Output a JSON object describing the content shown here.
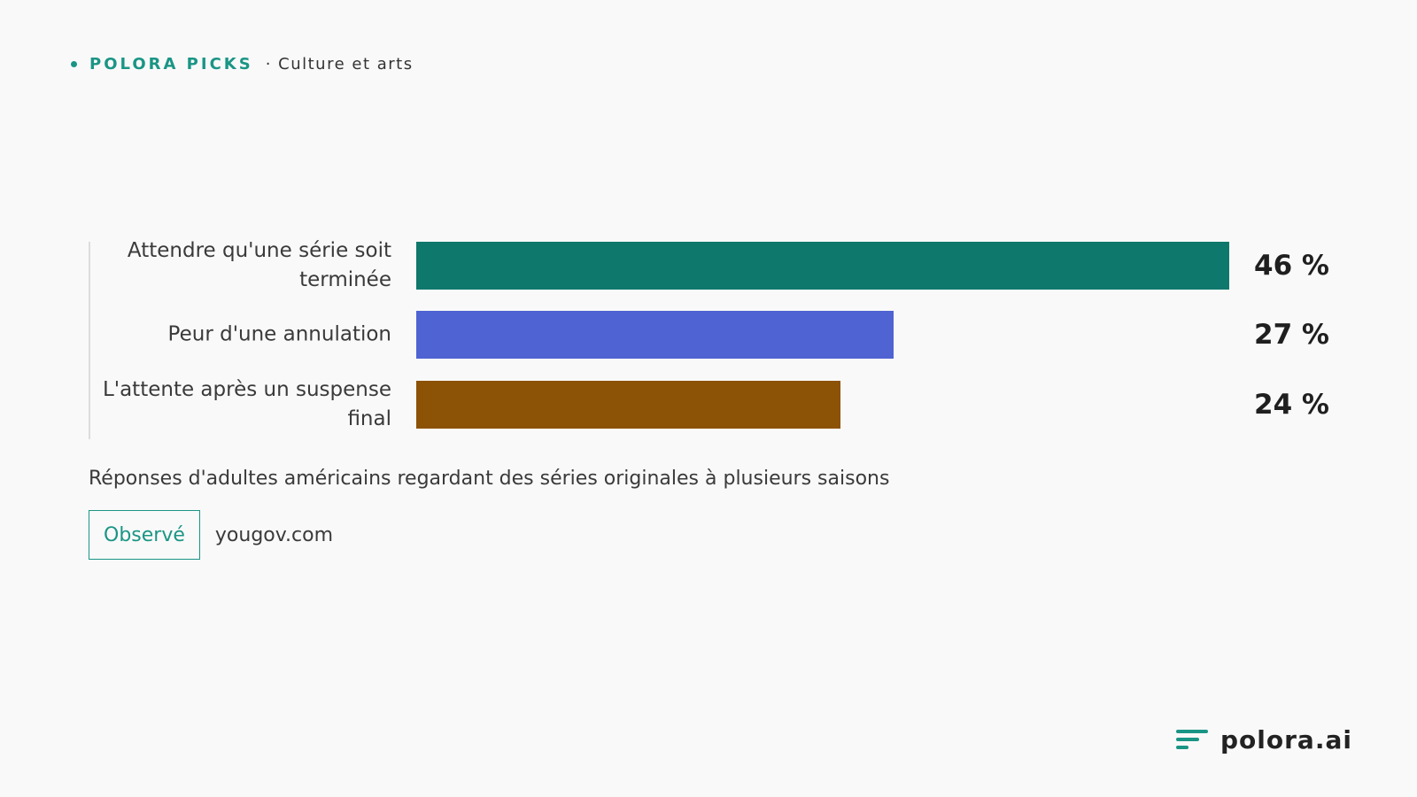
{
  "header": {
    "brand": "POLORA PICKS",
    "category": "· Culture et arts"
  },
  "colors": {
    "accent": "#1a9585"
  },
  "chart_data": {
    "type": "bar",
    "orientation": "horizontal",
    "categories": [
      "Attendre qu'une série soit terminée",
      "Peur d'une annulation",
      "L'attente après un suspense final"
    ],
    "values": [
      46,
      27,
      24
    ],
    "value_labels": [
      "46 %",
      "27 %",
      "24 %"
    ],
    "colors": [
      "#0f786c",
      "#4f63d2",
      "#8c5206"
    ],
    "xlim": [
      0,
      46
    ],
    "grid": false,
    "legend": "none"
  },
  "note": "Réponses d'adultes américains regardant des séries originales à plusieurs saisons",
  "source": {
    "badge": "Observé",
    "domain": "yougov.com"
  },
  "logo": {
    "name": "polora.ai",
    "icon": "polora-logo-icon"
  }
}
